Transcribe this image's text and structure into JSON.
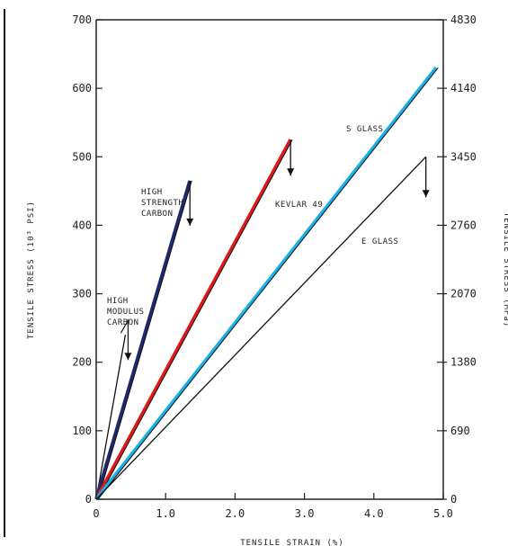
{
  "chart_data": {
    "type": "line",
    "xlabel": "TENSILE STRAIN (%)",
    "ylabel_left": "TENSILE STRESS (10³ PSI)",
    "ylabel_right": "TENSILE STRESS (MPa)",
    "xlim": [
      0,
      5
    ],
    "ylim_left": [
      0,
      700
    ],
    "ylim_right": [
      0,
      4830
    ],
    "x_ticks": [
      0,
      1,
      2,
      3,
      4,
      5
    ],
    "x_tick_labels": [
      "0",
      "1.0",
      "2.0",
      "3.0",
      "4.0",
      "5.0"
    ],
    "y_ticks_left": [
      0,
      100,
      200,
      300,
      400,
      500,
      600,
      700
    ],
    "y_tick_labels_left": [
      "0",
      "100",
      "200",
      "300",
      "400",
      "500",
      "600",
      "700"
    ],
    "y_ticks_right": [
      0,
      690,
      1380,
      2070,
      2760,
      3450,
      4140,
      4830
    ],
    "y_tick_labels_right": [
      "0",
      "690",
      "1380",
      "2070",
      "2760",
      "3450",
      "4140",
      "4830"
    ],
    "grid": false,
    "series": [
      {
        "name": "HIGH MODULUS CARBON",
        "color": "#111111",
        "x": [
          0,
          0.42
        ],
        "y": [
          0,
          240
        ]
      },
      {
        "name": "HIGH STRENGTH CARBON",
        "color": "#1c2a6b",
        "x": [
          0,
          1.35
        ],
        "y": [
          0,
          465
        ]
      },
      {
        "name": "KEVLAR 49",
        "color": "#e01818",
        "x": [
          0,
          2.8
        ],
        "y": [
          0,
          525
        ]
      },
      {
        "name": "S GLASS",
        "color": "#1ab0e8",
        "x": [
          0,
          4.9
        ],
        "y": [
          0,
          630
        ]
      },
      {
        "name": "E GLASS",
        "color": "#111111",
        "x": [
          0,
          4.75
        ],
        "y": [
          0,
          500
        ]
      }
    ],
    "annotations": [
      {
        "lines": [
          "HIGH",
          "MODULUS",
          "CARBON"
        ]
      },
      {
        "lines": [
          "HIGH",
          "STRENGTH",
          "CARBON"
        ]
      },
      {
        "lines": [
          "KEVLAR 49"
        ]
      },
      {
        "lines": [
          "S GLASS"
        ]
      },
      {
        "lines": [
          "E GLASS"
        ]
      }
    ]
  }
}
